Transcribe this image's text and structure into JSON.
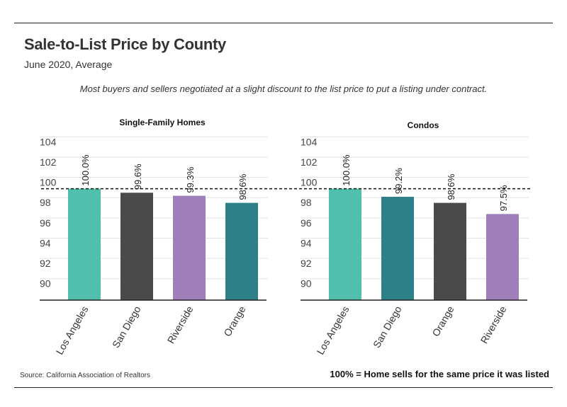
{
  "header": {
    "title": "Sale-to-List Price by County",
    "subtitle": "June 2020, Average",
    "caption": "Most buyers and sellers negotiated at a slight discount to the list price to put a listing under contract."
  },
  "footer": {
    "source": "Source:  California Association of Realtors",
    "note": "100% = Home sells for the same price it was listed"
  },
  "colors": {
    "teal_light": "#50bfab",
    "dark_gray": "#4a4a4a",
    "purple": "#9f7fba",
    "teal_dark": "#2d7f88"
  },
  "chart_data": [
    {
      "type": "bar",
      "title": "Single-Family Homes",
      "categories": [
        "Los Angeles",
        "San Diego",
        "Riverside",
        "Orange"
      ],
      "values": [
        100.0,
        99.6,
        99.3,
        98.6
      ],
      "labels": [
        "100.0%",
        "99.6%",
        "99.3%",
        "98.6%"
      ],
      "colors": [
        "#50bfab",
        "#4a4a4a",
        "#9f7fba",
        "#2d7f88"
      ],
      "yticks": [
        90,
        92,
        94,
        96,
        98,
        100,
        102,
        104
      ],
      "ylim": [
        89,
        105
      ],
      "reference_line": 100,
      "grid": true
    },
    {
      "type": "bar",
      "title": "Condos",
      "categories": [
        "Los Angeles",
        "San Diego",
        "Orange",
        "Riverside"
      ],
      "values": [
        100.0,
        99.2,
        98.6,
        97.5
      ],
      "labels": [
        "100.0%",
        "99.2%",
        "98.6%",
        "97.5%"
      ],
      "colors": [
        "#50bfab",
        "#2d7f88",
        "#4a4a4a",
        "#9f7fba"
      ],
      "yticks": [
        90,
        92,
        94,
        96,
        98,
        100,
        102,
        104
      ],
      "ylim": [
        89,
        105
      ],
      "reference_line": 100,
      "grid": true
    }
  ]
}
